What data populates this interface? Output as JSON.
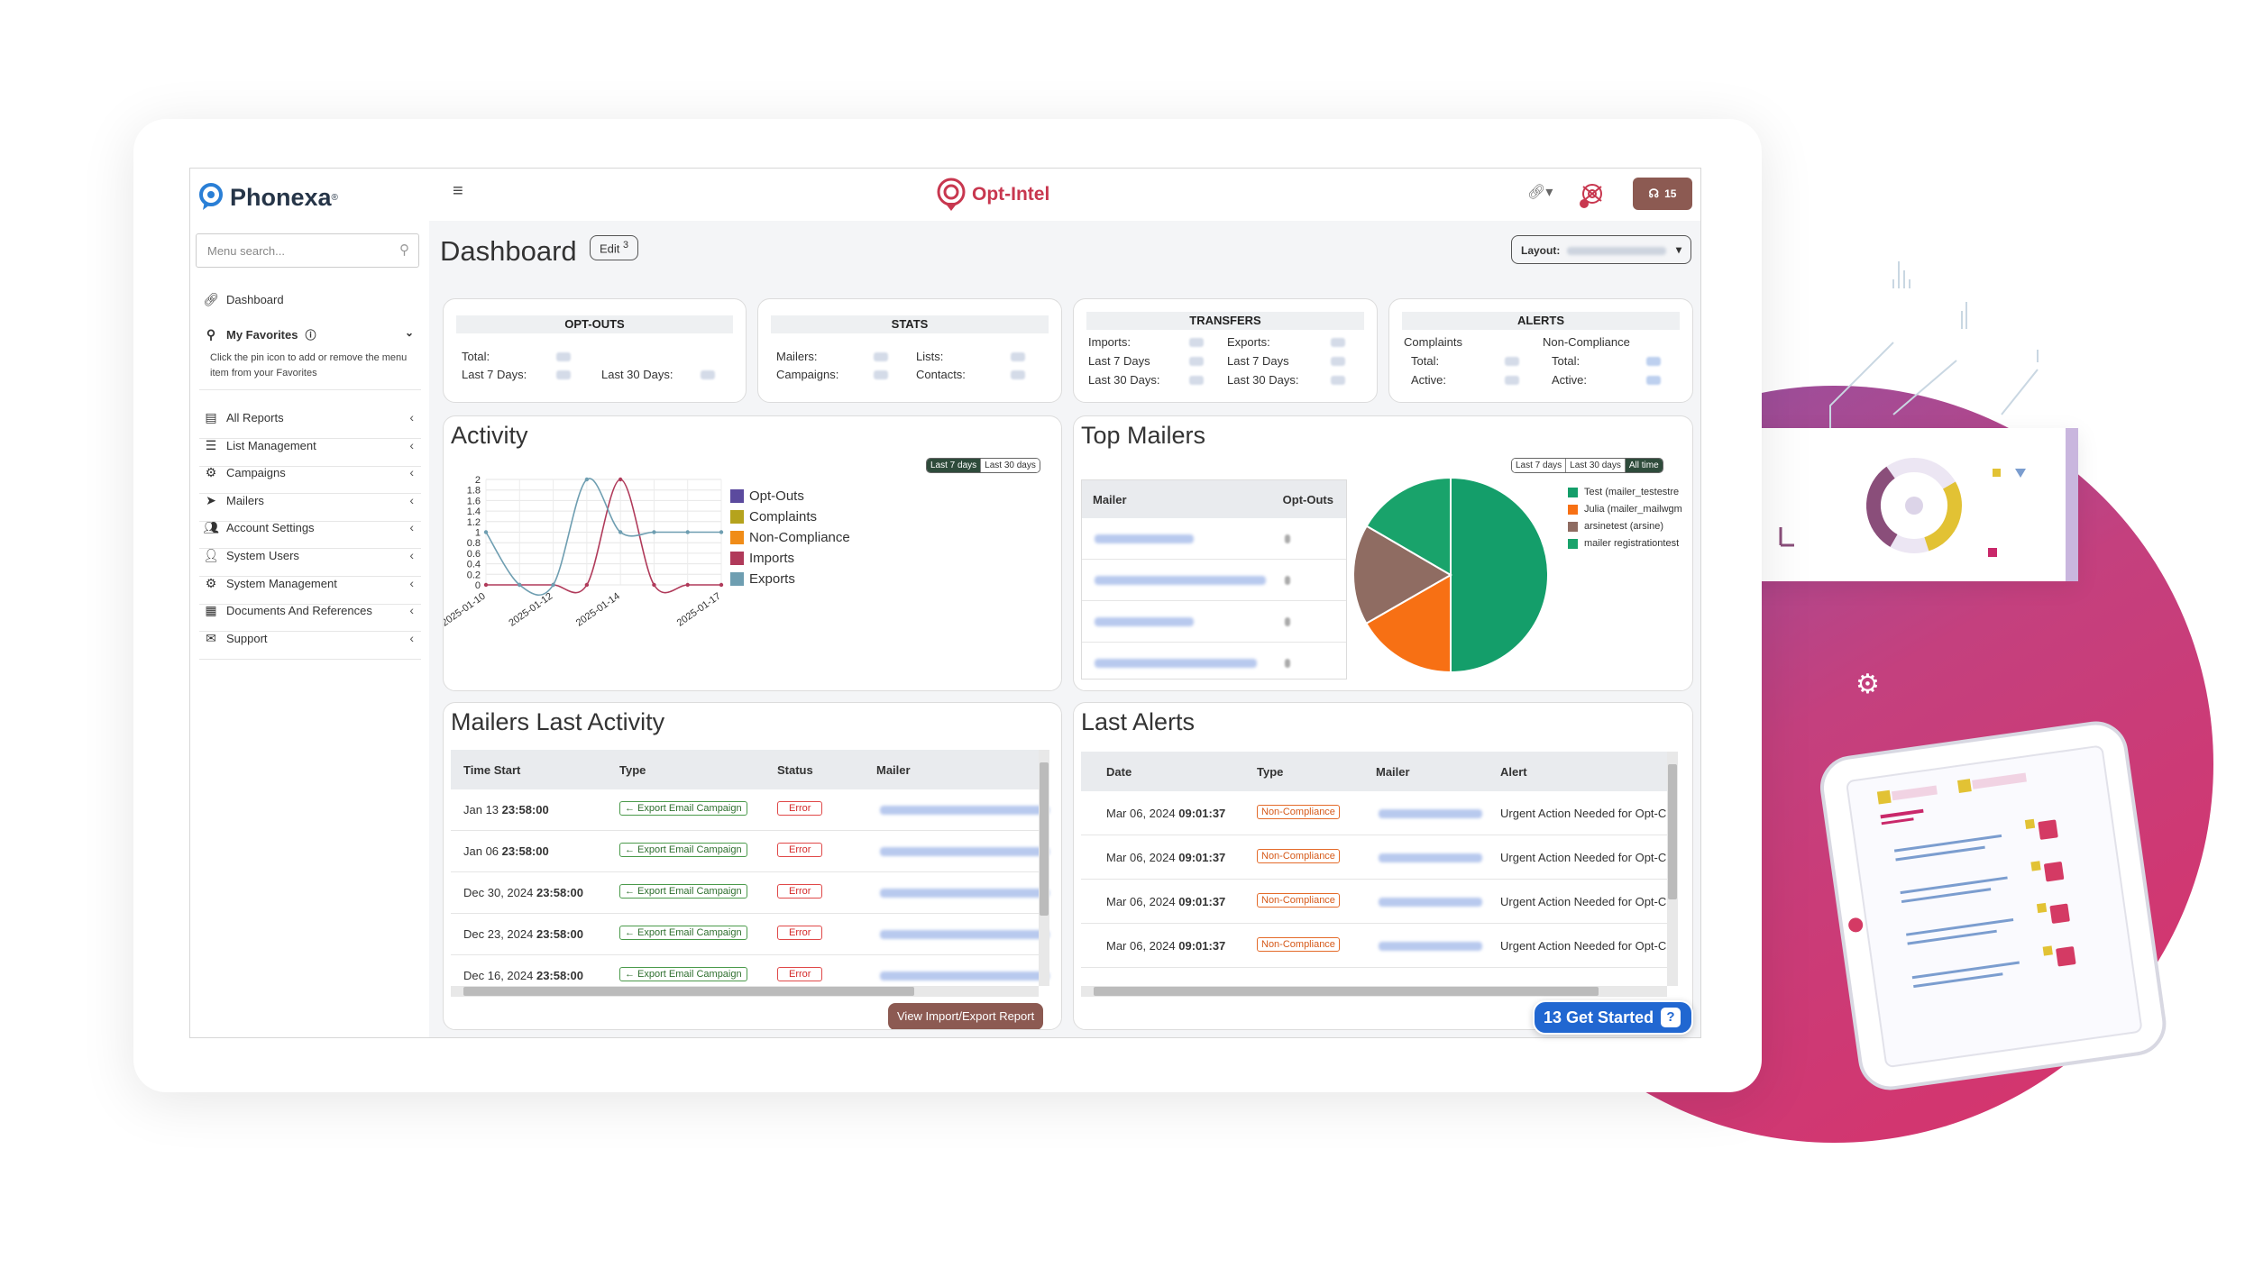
{
  "brand": {
    "name": "Phonexa",
    "reg": "®",
    "product": "Opt-Intel"
  },
  "topbar": {
    "menu_icon": "hamburger-icon",
    "link_icon": "link-icon",
    "support_count": "15"
  },
  "sidebar": {
    "search_placeholder": "Menu search...",
    "dashboard_label": "Dashboard",
    "favorites": {
      "label": "My Favorites",
      "hint": "Click the pin icon to add or remove the menu item from your Favorites"
    },
    "items": [
      {
        "label": "All Reports",
        "icon": "reports-icon"
      },
      {
        "label": "List Management",
        "icon": "list-icon"
      },
      {
        "label": "Campaigns",
        "icon": "campaigns-icon"
      },
      {
        "label": "Mailers",
        "icon": "mailers-icon"
      },
      {
        "label": "Account Settings",
        "icon": "users-icon"
      },
      {
        "label": "System Users",
        "icon": "user-icon"
      },
      {
        "label": "System Management",
        "icon": "gears-icon"
      },
      {
        "label": "Documents And References",
        "icon": "document-icon"
      },
      {
        "label": "Support",
        "icon": "mail-icon"
      }
    ]
  },
  "header": {
    "title": "Dashboard",
    "edit_label": "Edit",
    "edit_count": "3",
    "layout_label": "Layout:"
  },
  "stats": {
    "optouts": {
      "title": "OPT-OUTS",
      "total": "Total:",
      "last7": "Last 7 Days:",
      "last30": "Last 30 Days:"
    },
    "stats": {
      "title": "STATS",
      "mailers": "Mailers:",
      "campaigns": "Campaigns:",
      "lists": "Lists:",
      "contacts": "Contacts:"
    },
    "transfers": {
      "title": "TRANSFERS",
      "imports": "Imports:",
      "exports": "Exports:",
      "last7a": "Last 7 Days",
      "last7b": "Last 7 Days",
      "last30a": "Last 30 Days:",
      "last30b": "Last 30 Days:"
    },
    "alerts": {
      "title": "ALERTS",
      "complaints": "Complaints",
      "noncompliance": "Non-Compliance",
      "total_a": "Total:",
      "total_b": "Total:",
      "active_a": "Active:",
      "active_b": "Active:"
    }
  },
  "activity": {
    "title": "Activity",
    "range_buttons": [
      "Last 7 days",
      "Last 30 days"
    ],
    "active_range": "Last 7 days"
  },
  "chart_data": {
    "type": "line",
    "x": [
      "2025-01-10",
      "2025-01-11",
      "2025-01-12",
      "2025-01-13",
      "2025-01-14",
      "2025-01-15",
      "2025-01-16",
      "2025-01-17"
    ],
    "x_tick_labels": [
      "2025-01-10",
      "2025-01-12",
      "2025-01-14",
      "2025-01-17"
    ],
    "ylim": [
      0,
      2
    ],
    "y_ticks": [
      "0",
      "0.2",
      "0.4",
      "0.6",
      "0.8",
      "1",
      "1.2",
      "1.4",
      "1.6",
      "1.8",
      "2"
    ],
    "series": [
      {
        "name": "Opt-Outs",
        "color": "#5b4a9e",
        "values": [
          0,
          0,
          0,
          0,
          0,
          0,
          0,
          0
        ]
      },
      {
        "name": "Complaints",
        "color": "#b5a31d",
        "values": [
          0,
          0,
          0,
          0,
          0,
          0,
          0,
          0
        ]
      },
      {
        "name": "Non-Compliance",
        "color": "#f08c18",
        "values": [
          0,
          0,
          0,
          0,
          0,
          0,
          0,
          0
        ]
      },
      {
        "name": "Imports",
        "color": "#b03a5a",
        "values": [
          0,
          0,
          0,
          0,
          2,
          0,
          0,
          0
        ]
      },
      {
        "name": "Exports",
        "color": "#6e9eb1",
        "values": [
          1,
          0,
          0,
          2,
          1,
          1,
          1,
          1
        ]
      }
    ]
  },
  "top_mailers": {
    "title": "Top Mailers",
    "range_buttons": [
      "Last 7 days",
      "Last 30 days",
      "All time"
    ],
    "active_range": "All time",
    "columns": [
      "Mailer",
      "Opt-Outs"
    ],
    "legend": [
      {
        "name": "Test (mailer_testestre",
        "color": "#149e6a"
      },
      {
        "name": "Julia (mailer_mailwgm",
        "color": "#f77014"
      },
      {
        "name": "arsinetest (arsine)",
        "color": "#8f6c62"
      },
      {
        "name": "mailer registrationtest",
        "color": "#19a36b"
      }
    ],
    "pie": [
      {
        "name": "Test",
        "value": 50,
        "color": "#149e6a"
      },
      {
        "name": "Julia",
        "value": 16.7,
        "color": "#f77014"
      },
      {
        "name": "arsinetest",
        "value": 16.7,
        "color": "#8f6c62"
      },
      {
        "name": "mailer registrationtest",
        "value": 16.6,
        "color": "#19a36b"
      }
    ]
  },
  "mailers_activity": {
    "title": "Mailers Last Activity",
    "columns": [
      "Time Start",
      "Type",
      "Status",
      "Mailer"
    ],
    "rows": [
      {
        "date": "Jan 13",
        "time": "23:58:00",
        "type": "← Export Email Campaign",
        "status": "Error"
      },
      {
        "date": "Jan 06",
        "time": "23:58:00",
        "type": "← Export Email Campaign",
        "status": "Error"
      },
      {
        "date": "Dec 30, 2024",
        "time": "23:58:00",
        "type": "← Export Email Campaign",
        "status": "Error"
      },
      {
        "date": "Dec 23, 2024",
        "time": "23:58:00",
        "type": "← Export Email Campaign",
        "status": "Error"
      },
      {
        "date": "Dec 16, 2024",
        "time": "23:58:00",
        "type": "← Export Email Campaign",
        "status": "Error"
      }
    ],
    "report_button": "View Import/Export Report"
  },
  "last_alerts": {
    "title": "Last Alerts",
    "columns": [
      "Date",
      "Type",
      "Mailer",
      "Alert"
    ],
    "rows": [
      {
        "date": "Mar 06, 2024",
        "time": "09:01:37",
        "type": "Non-Compliance",
        "alert": "Urgent Action Needed for Opt-C"
      },
      {
        "date": "Mar 06, 2024",
        "time": "09:01:37",
        "type": "Non-Compliance",
        "alert": "Urgent Action Needed for Opt-C"
      },
      {
        "date": "Mar 06, 2024",
        "time": "09:01:37",
        "type": "Non-Compliance",
        "alert": "Urgent Action Needed for Opt-C"
      },
      {
        "date": "Mar 06, 2024",
        "time": "09:01:37",
        "type": "Non-Compliance",
        "alert": "Urgent Action Needed for Opt-C"
      }
    ]
  },
  "get_started": {
    "count": "13",
    "label": "Get Started"
  },
  "colors": {
    "brand_red": "#c8374f",
    "accent_green": "#2e4b3b",
    "report_button": "#8c5a52",
    "get_started": "#2167d1"
  }
}
